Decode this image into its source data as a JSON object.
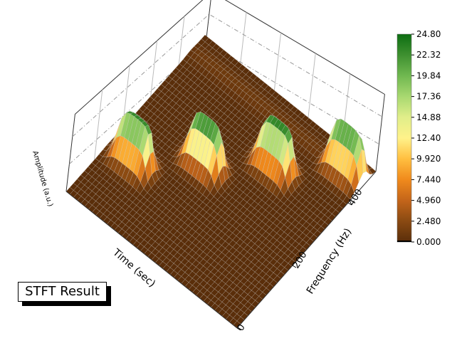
{
  "chart_data": {
    "type": "surface",
    "title": "",
    "xlabel": "Time (sec)",
    "ylabel": "Frequency (Hz)",
    "zlabel": "Amplitude (a.u.)",
    "y_ticks": [
      "0",
      "200",
      "400"
    ],
    "ylim": [
      0,
      500
    ],
    "zlim": [
      0,
      24.8
    ],
    "colorbar": {
      "ticks": [
        "24.80",
        "22.32",
        "19.84",
        "17.36",
        "14.88",
        "12.40",
        "9.920",
        "7.440",
        "4.960",
        "2.480",
        "0.000"
      ],
      "colors": [
        "#5a2e0a",
        "#8a4a12",
        "#c4651a",
        "#f08a1c",
        "#ffbf40",
        "#fff28a",
        "#e0ee8a",
        "#a8d870",
        "#70b850",
        "#3e9030",
        "#0d6e12"
      ]
    },
    "peaks": [
      {
        "frequency_hz": 450,
        "amplitude": 24.8
      },
      {
        "frequency_hz": 350,
        "amplitude": 24.8
      },
      {
        "frequency_hz": 250,
        "amplitude": 24.8
      },
      {
        "frequency_hz": 150,
        "amplitude": 24.8
      }
    ],
    "legend_position": "right",
    "grid": true
  },
  "badge": {
    "label": "STFT Result"
  }
}
